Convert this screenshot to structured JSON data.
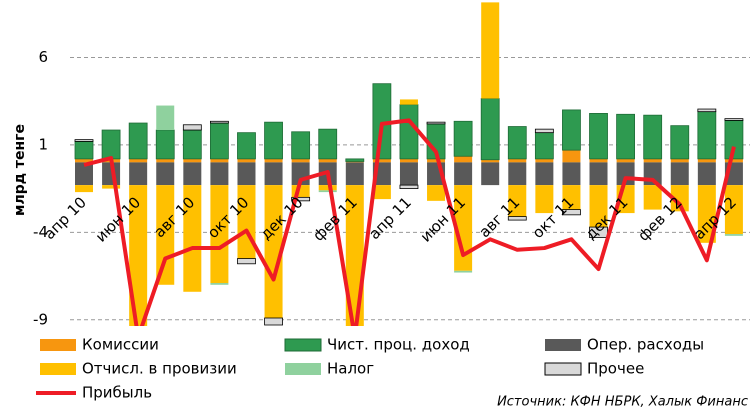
{
  "chart_data": {
    "type": "bar",
    "stacked": true,
    "y_label": "млрд тенге",
    "source": "Источник: КФН НБРК, Халык Финанс",
    "categories": [
      "апр 10",
      null,
      "июн 10",
      null,
      "авг 10",
      null,
      "окт 10",
      null,
      "дек 10",
      null,
      "фев 11",
      null,
      "апр 11",
      null,
      "июн 11",
      null,
      "авг 11",
      null,
      "окт 11",
      null,
      "дек 11",
      null,
      "фев 12",
      null,
      "апр 12"
    ],
    "ylim": [
      -9.3,
      9.2
    ],
    "yticks": [
      6,
      1,
      -4,
      -9
    ],
    "grid": true,
    "series": [
      {
        "name": "Комиссии",
        "color": "#f7960f",
        "values": [
          0.2,
          0.2,
          0.2,
          0.2,
          0.2,
          0.2,
          0.2,
          0.2,
          0.2,
          0.2,
          0.05,
          0.2,
          0.2,
          0.2,
          0.35,
          0.15,
          0.2,
          0.2,
          0.7,
          0.2,
          0.2,
          0.2,
          0.2,
          0.2,
          0.2
        ]
      },
      {
        "name": "Чист. проц. доход",
        "color": "#2e9a50",
        "values": [
          1.0,
          1.65,
          2.05,
          1.65,
          1.65,
          2.05,
          1.5,
          2.1,
          1.55,
          1.7,
          0.15,
          4.3,
          3.1,
          2.0,
          2.0,
          3.5,
          1.85,
          1.5,
          2.3,
          2.6,
          2.55,
          2.5,
          1.9,
          2.7,
          2.2
        ]
      },
      {
        "name": "Опер. расходы",
        "color": "#595959",
        "values": [
          -1.3,
          -1.3,
          -1.3,
          -1.3,
          -1.3,
          -1.3,
          -1.3,
          -1.3,
          -1.3,
          -1.3,
          -1.3,
          -1.3,
          -1.3,
          -1.3,
          -1.3,
          -1.3,
          -1.3,
          -1.3,
          -1.3,
          -1.3,
          -1.3,
          -1.3,
          -1.3,
          -1.3,
          -1.3
        ]
      },
      {
        "name": "Отчисл. в провизии",
        "color": "#ffc000",
        "values": [
          -0.4,
          -0.2,
          -8.5,
          -5.7,
          -6.1,
          -5.6,
          -4.2,
          -7.6,
          -0.7,
          -0.3,
          -9,
          -0.8,
          0.3,
          -0.9,
          -4.9,
          5.5,
          -1.8,
          -1.6,
          -1.4,
          -2.4,
          -1.6,
          -1.4,
          -1.5,
          -3.3,
          -2.8
        ]
      },
      {
        "name": "Налог",
        "color": "#8fd19e",
        "values": [
          0,
          0,
          0,
          1.4,
          0,
          -0.1,
          0,
          0,
          0,
          -0.1,
          0,
          0,
          0,
          0,
          -0.1,
          0,
          0,
          0,
          0,
          0,
          0,
          0,
          0,
          0,
          -0.1
        ]
      },
      {
        "name": "Прочее",
        "color": "#d9d9d9",
        "values": [
          0.1,
          0,
          0,
          0,
          0.3,
          0.1,
          -0.3,
          -0.4,
          -0.2,
          0,
          0,
          0,
          -0.2,
          0.1,
          0,
          0,
          -0.2,
          0.2,
          -0.3,
          -0.6,
          0,
          0,
          0,
          0.15,
          0.1
        ]
      },
      {
        "name": "Прибыль",
        "color": "#ee1c25",
        "type": "line",
        "values": [
          -0.15,
          0.25,
          -10,
          -5.5,
          -4.9,
          -4.9,
          -3.9,
          -6.7,
          -1.0,
          -0.55,
          -10,
          2.2,
          2.4,
          0.6,
          -5.3,
          -4.4,
          -5.0,
          -4.9,
          -4.4,
          -6.1,
          -0.9,
          -1.0,
          -2.4,
          -5.6,
          0.9
        ]
      }
    ]
  }
}
